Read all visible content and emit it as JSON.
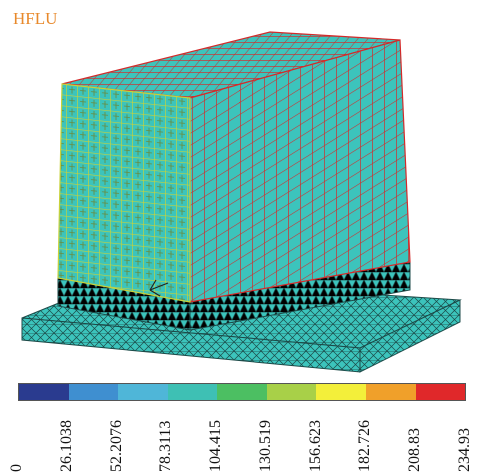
{
  "result": {
    "label": "HFLU"
  },
  "legend": {
    "colors": [
      "#2a3b8f",
      "#3f8fd0",
      "#4fb6d8",
      "#3ec0b4",
      "#4cbf62",
      "#a8d048",
      "#f3ef3a",
      "#f0a02a",
      "#e0282a"
    ],
    "ticks": [
      "0",
      "26.1038",
      "52.2076",
      "78.3113",
      "104.415",
      "130.519",
      "156.623",
      "182.726",
      "208.83",
      "234.93"
    ]
  },
  "colors": {
    "mesh_teal": "#3cc4bc",
    "mesh_red": "#d42a2a",
    "mesh_yellow": "#c8d23a",
    "mesh_dark": "#1c4a48",
    "label_orange": "#e8892b"
  }
}
